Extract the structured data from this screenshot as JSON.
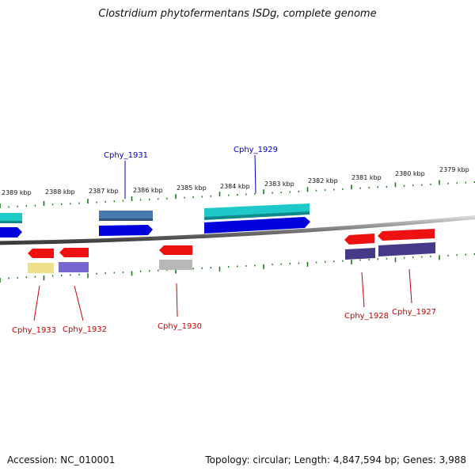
{
  "title": "Clostridium phytofermentans ISDg, complete genome",
  "footer": {
    "accession": "Accession: NC_010001",
    "summary": "Topology: circular; Length: 4,847,594 bp; Genes: 3,988"
  },
  "colors": {
    "backbone": "#8a8a8a",
    "ticks": "#1a7a1a",
    "forward_label": "#0000cc",
    "reverse_label": "#cc0000"
  },
  "kbp_labels": [
    "2389 kbp",
    "2388 kbp",
    "2387 kbp",
    "2386 kbp",
    "2385 kbp",
    "2384 kbp",
    "2383 kbp",
    "2382 kbp",
    "2381 kbp",
    "2380 kbp",
    "2379 kbp"
  ],
  "gene_labels": {
    "cphy_1931": "Cphy_1931",
    "cphy_1929": "Cphy_1929",
    "cphy_1933": "Cphy_1933",
    "cphy_1932": "Cphy_1932",
    "cphy_1930": "Cphy_1930",
    "cphy_1928": "Cphy_1928",
    "cphy_1927": "Cphy_1927"
  }
}
